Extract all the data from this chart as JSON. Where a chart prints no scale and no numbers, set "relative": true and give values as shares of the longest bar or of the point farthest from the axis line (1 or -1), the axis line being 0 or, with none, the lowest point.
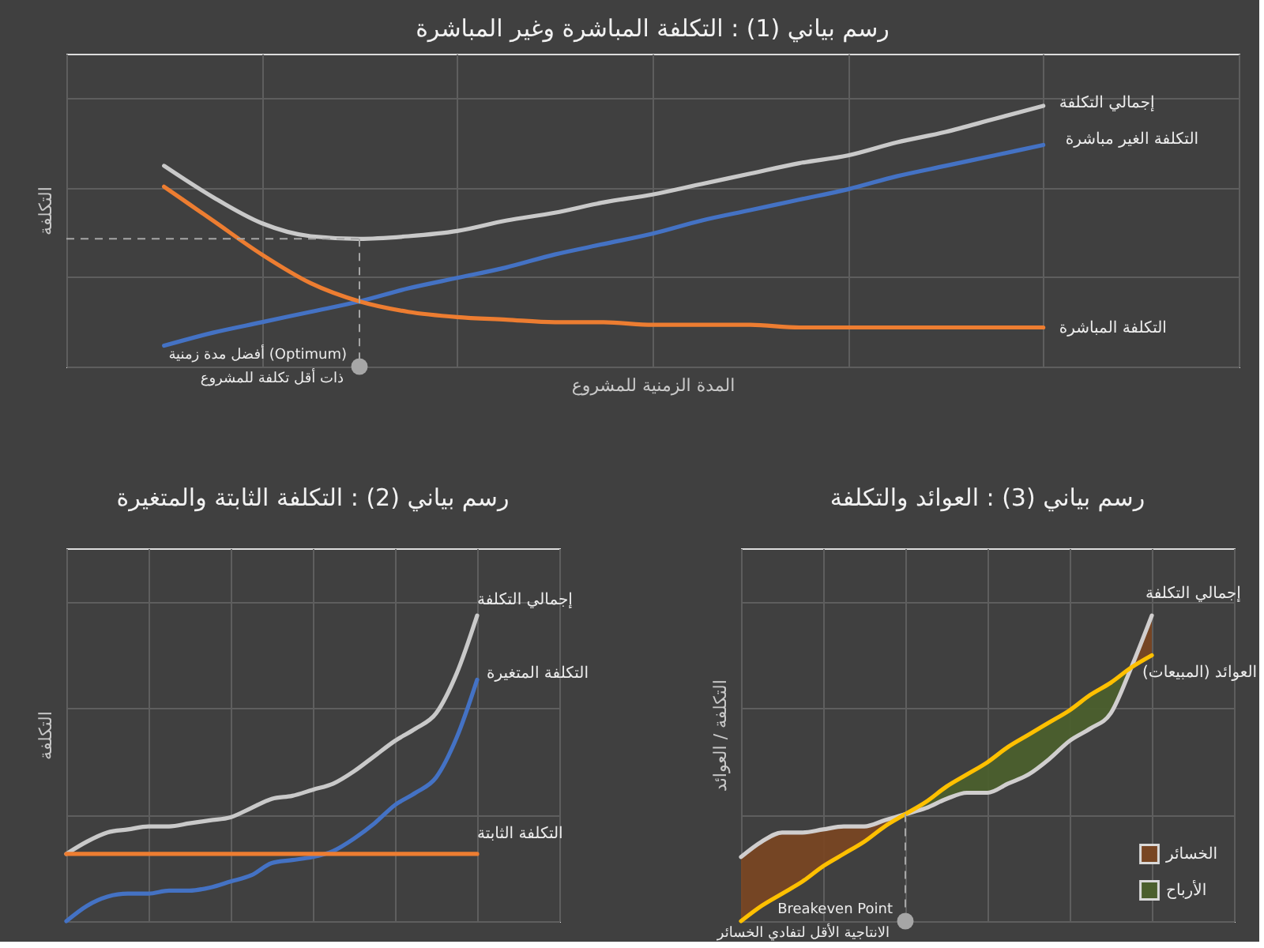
{
  "chart_data": [
    {
      "type": "line",
      "title": "رسم بياني (1) : التكلفة المباشرة وغير المباشرة",
      "xlabel": "المدة الزمنية للمشروع",
      "ylabel": "التكلفة",
      "relative": true,
      "grid": true,
      "categories": [
        null,
        null,
        null,
        null,
        null,
        null,
        null,
        null,
        null,
        null,
        null,
        null,
        null,
        null,
        null,
        null,
        null,
        null,
        null
      ],
      "series": [
        {
          "name": "إجمالي التكلفة",
          "color": "#c9c9c9",
          "values": [
            0.77,
            0.65,
            0.55,
            0.5,
            0.49,
            0.5,
            0.52,
            0.56,
            0.59,
            0.63,
            0.66,
            0.7,
            0.74,
            0.78,
            0.81,
            0.86,
            0.9,
            0.95,
            1.0
          ]
        },
        {
          "name": "التكلفة الغير مباشرة",
          "color": "#4472c4",
          "values": [
            0.08,
            0.13,
            0.17,
            0.21,
            0.25,
            0.3,
            0.34,
            0.38,
            0.43,
            0.47,
            0.51,
            0.56,
            0.6,
            0.64,
            0.68,
            0.73,
            0.77,
            0.81,
            0.85
          ]
        },
        {
          "name": "التكلفة المباشرة",
          "color": "#ed7d31",
          "values": [
            0.69,
            0.56,
            0.43,
            0.32,
            0.25,
            0.21,
            0.19,
            0.18,
            0.17,
            0.17,
            0.16,
            0.16,
            0.16,
            0.15,
            0.15,
            0.15,
            0.15,
            0.15,
            0.15
          ]
        }
      ],
      "ref_lines": [
        {
          "axis": "y",
          "value": 0.49,
          "line_style": "dashed",
          "color": "#a6a6a6"
        }
      ],
      "annotations": [
        "أفضل مدة زمنية (Optimum)",
        "ذات أقل تكلفة للمشروع"
      ]
    },
    {
      "type": "line",
      "title": "رسم بياني (2) : التكلفة الثابتة والمتغيرة",
      "ylabel": "التكلفة",
      "relative": true,
      "grid": true,
      "categories": [
        null,
        null,
        null,
        null,
        null,
        null,
        null,
        null,
        null,
        null,
        null,
        null,
        null,
        null,
        null,
        null,
        null,
        null,
        null,
        null,
        null
      ],
      "series": [
        {
          "name": "إجمالي التكلفة",
          "color": "#c9c9c9",
          "values": [
            0.22,
            0.26,
            0.29,
            0.3,
            0.31,
            0.31,
            0.32,
            0.33,
            0.34,
            0.37,
            0.4,
            0.41,
            0.43,
            0.45,
            0.49,
            0.54,
            0.59,
            0.63,
            0.68,
            0.81,
            1.0
          ]
        },
        {
          "name": "التكلفة المتغيرة",
          "color": "#4472c4",
          "values": [
            0.0,
            0.05,
            0.08,
            0.09,
            0.09,
            0.1,
            0.1,
            0.11,
            0.13,
            0.15,
            0.19,
            0.2,
            0.21,
            0.23,
            0.27,
            0.32,
            0.38,
            0.42,
            0.47,
            0.6,
            0.79
          ]
        },
        {
          "name": "التكلفة الثابتة",
          "color": "#ed7d31",
          "values": [
            0.22,
            0.22,
            0.22,
            0.22,
            0.22,
            0.22,
            0.22,
            0.22,
            0.22,
            0.22,
            0.22,
            0.22,
            0.22,
            0.22,
            0.22,
            0.22,
            0.22,
            0.22,
            0.22,
            0.22,
            0.22
          ]
        }
      ]
    },
    {
      "type": "line",
      "title": "رسم بياني (3) : العوائد والتكلفة",
      "ylabel": "التكلفة / العوائد",
      "relative": true,
      "grid": true,
      "legend": "bottom right",
      "categories": [
        null,
        null,
        null,
        null,
        null,
        null,
        null,
        null,
        null,
        null,
        null,
        null,
        null,
        null,
        null,
        null,
        null,
        null,
        null,
        null,
        null
      ],
      "series": [
        {
          "name": "الخسائر",
          "type": "area",
          "color": "#784623",
          "values": [
            null,
            null,
            null,
            null,
            null,
            null,
            null,
            null,
            null,
            null,
            null,
            null,
            null,
            null,
            null,
            null,
            null,
            null,
            null,
            null,
            null
          ],
          "upper": [
            0.21,
            0.26,
            0.29,
            0.29,
            0.3,
            0.31,
            0.31,
            0.33,
            0.35,
            null,
            null,
            null,
            null,
            null,
            null,
            null,
            null,
            null,
            null,
            0.83,
            1.0
          ],
          "lower": [
            0.0,
            0.05,
            0.09,
            0.13,
            0.18,
            0.22,
            0.26,
            0.31,
            0.35,
            null,
            null,
            null,
            null,
            null,
            null,
            null,
            null,
            null,
            null,
            0.83,
            0.87
          ]
        },
        {
          "name": "الأرباح",
          "type": "area",
          "color": "#4b5f2d",
          "values": [
            null,
            null,
            null,
            null,
            null,
            null,
            null,
            null,
            null,
            null,
            null,
            null,
            null,
            null,
            null,
            null,
            null,
            null,
            null,
            null,
            null
          ],
          "upper": [
            null,
            null,
            null,
            null,
            null,
            null,
            null,
            null,
            0.35,
            0.39,
            0.44,
            0.48,
            0.52,
            0.57,
            0.61,
            0.65,
            0.69,
            0.74,
            0.78,
            0.83,
            null
          ],
          "lower": [
            null,
            null,
            null,
            null,
            null,
            null,
            null,
            null,
            0.35,
            0.37,
            0.4,
            0.42,
            0.42,
            0.45,
            0.48,
            0.53,
            0.59,
            0.63,
            0.68,
            0.83,
            null
          ]
        },
        {
          "name": "إجمالي التكلفة",
          "color": "#d0cece",
          "values": [
            0.21,
            0.26,
            0.29,
            0.29,
            0.3,
            0.31,
            0.31,
            0.33,
            0.35,
            0.37,
            0.4,
            0.42,
            0.42,
            0.45,
            0.48,
            0.53,
            0.59,
            0.63,
            0.68,
            0.83,
            1.0
          ]
        },
        {
          "name": "العوائد (المبيعات)",
          "color": "#ffc000",
          "values": [
            0.0,
            0.05,
            0.09,
            0.13,
            0.18,
            0.22,
            0.26,
            0.31,
            0.35,
            0.39,
            0.44,
            0.48,
            0.52,
            0.57,
            0.61,
            0.65,
            0.69,
            0.74,
            0.78,
            0.83,
            0.87
          ]
        }
      ],
      "annotations": [
        "Breakeven Point",
        "الانتاجية الأقل لتفادي الخسائر"
      ]
    }
  ]
}
